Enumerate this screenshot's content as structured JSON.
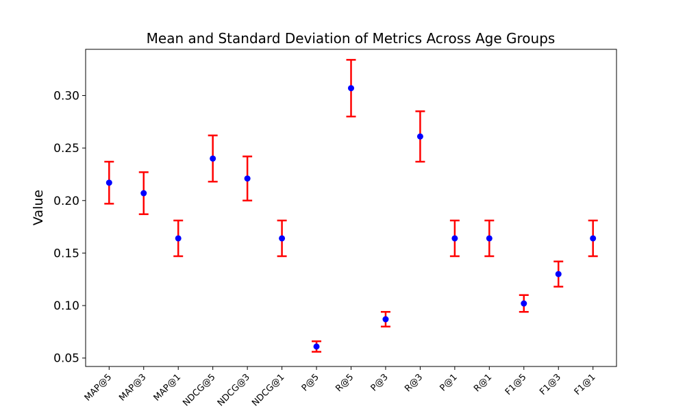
{
  "chart_data": {
    "type": "errorbar",
    "title": "Mean and Standard Deviation of Metrics Across Age Groups",
    "xlabel": "",
    "ylabel": "Value",
    "ylim": [
      0.042,
      0.344
    ],
    "yticks": [
      0.05,
      0.1,
      0.15,
      0.2,
      0.25,
      0.3
    ],
    "ytick_labels": [
      "0.05",
      "0.10",
      "0.15",
      "0.20",
      "0.25",
      "0.30"
    ],
    "categories": [
      "MAP@5",
      "MAP@3",
      "MAP@1",
      "NDCG@5",
      "NDCG@3",
      "NDCG@1",
      "P@5",
      "R@5",
      "P@3",
      "R@3",
      "P@1",
      "R@1",
      "F1@5",
      "F1@3",
      "F1@1"
    ],
    "means": [
      0.217,
      0.207,
      0.164,
      0.24,
      0.221,
      0.164,
      0.061,
      0.307,
      0.087,
      0.261,
      0.164,
      0.164,
      0.102,
      0.13,
      0.164
    ],
    "std": [
      0.02,
      0.02,
      0.017,
      0.022,
      0.021,
      0.017,
      0.005,
      0.027,
      0.007,
      0.024,
      0.017,
      0.017,
      0.008,
      0.012,
      0.017
    ],
    "grid": false,
    "colors": {
      "point": "#0000ff",
      "errorbar": "#ff0000",
      "axis": "#000000"
    }
  }
}
